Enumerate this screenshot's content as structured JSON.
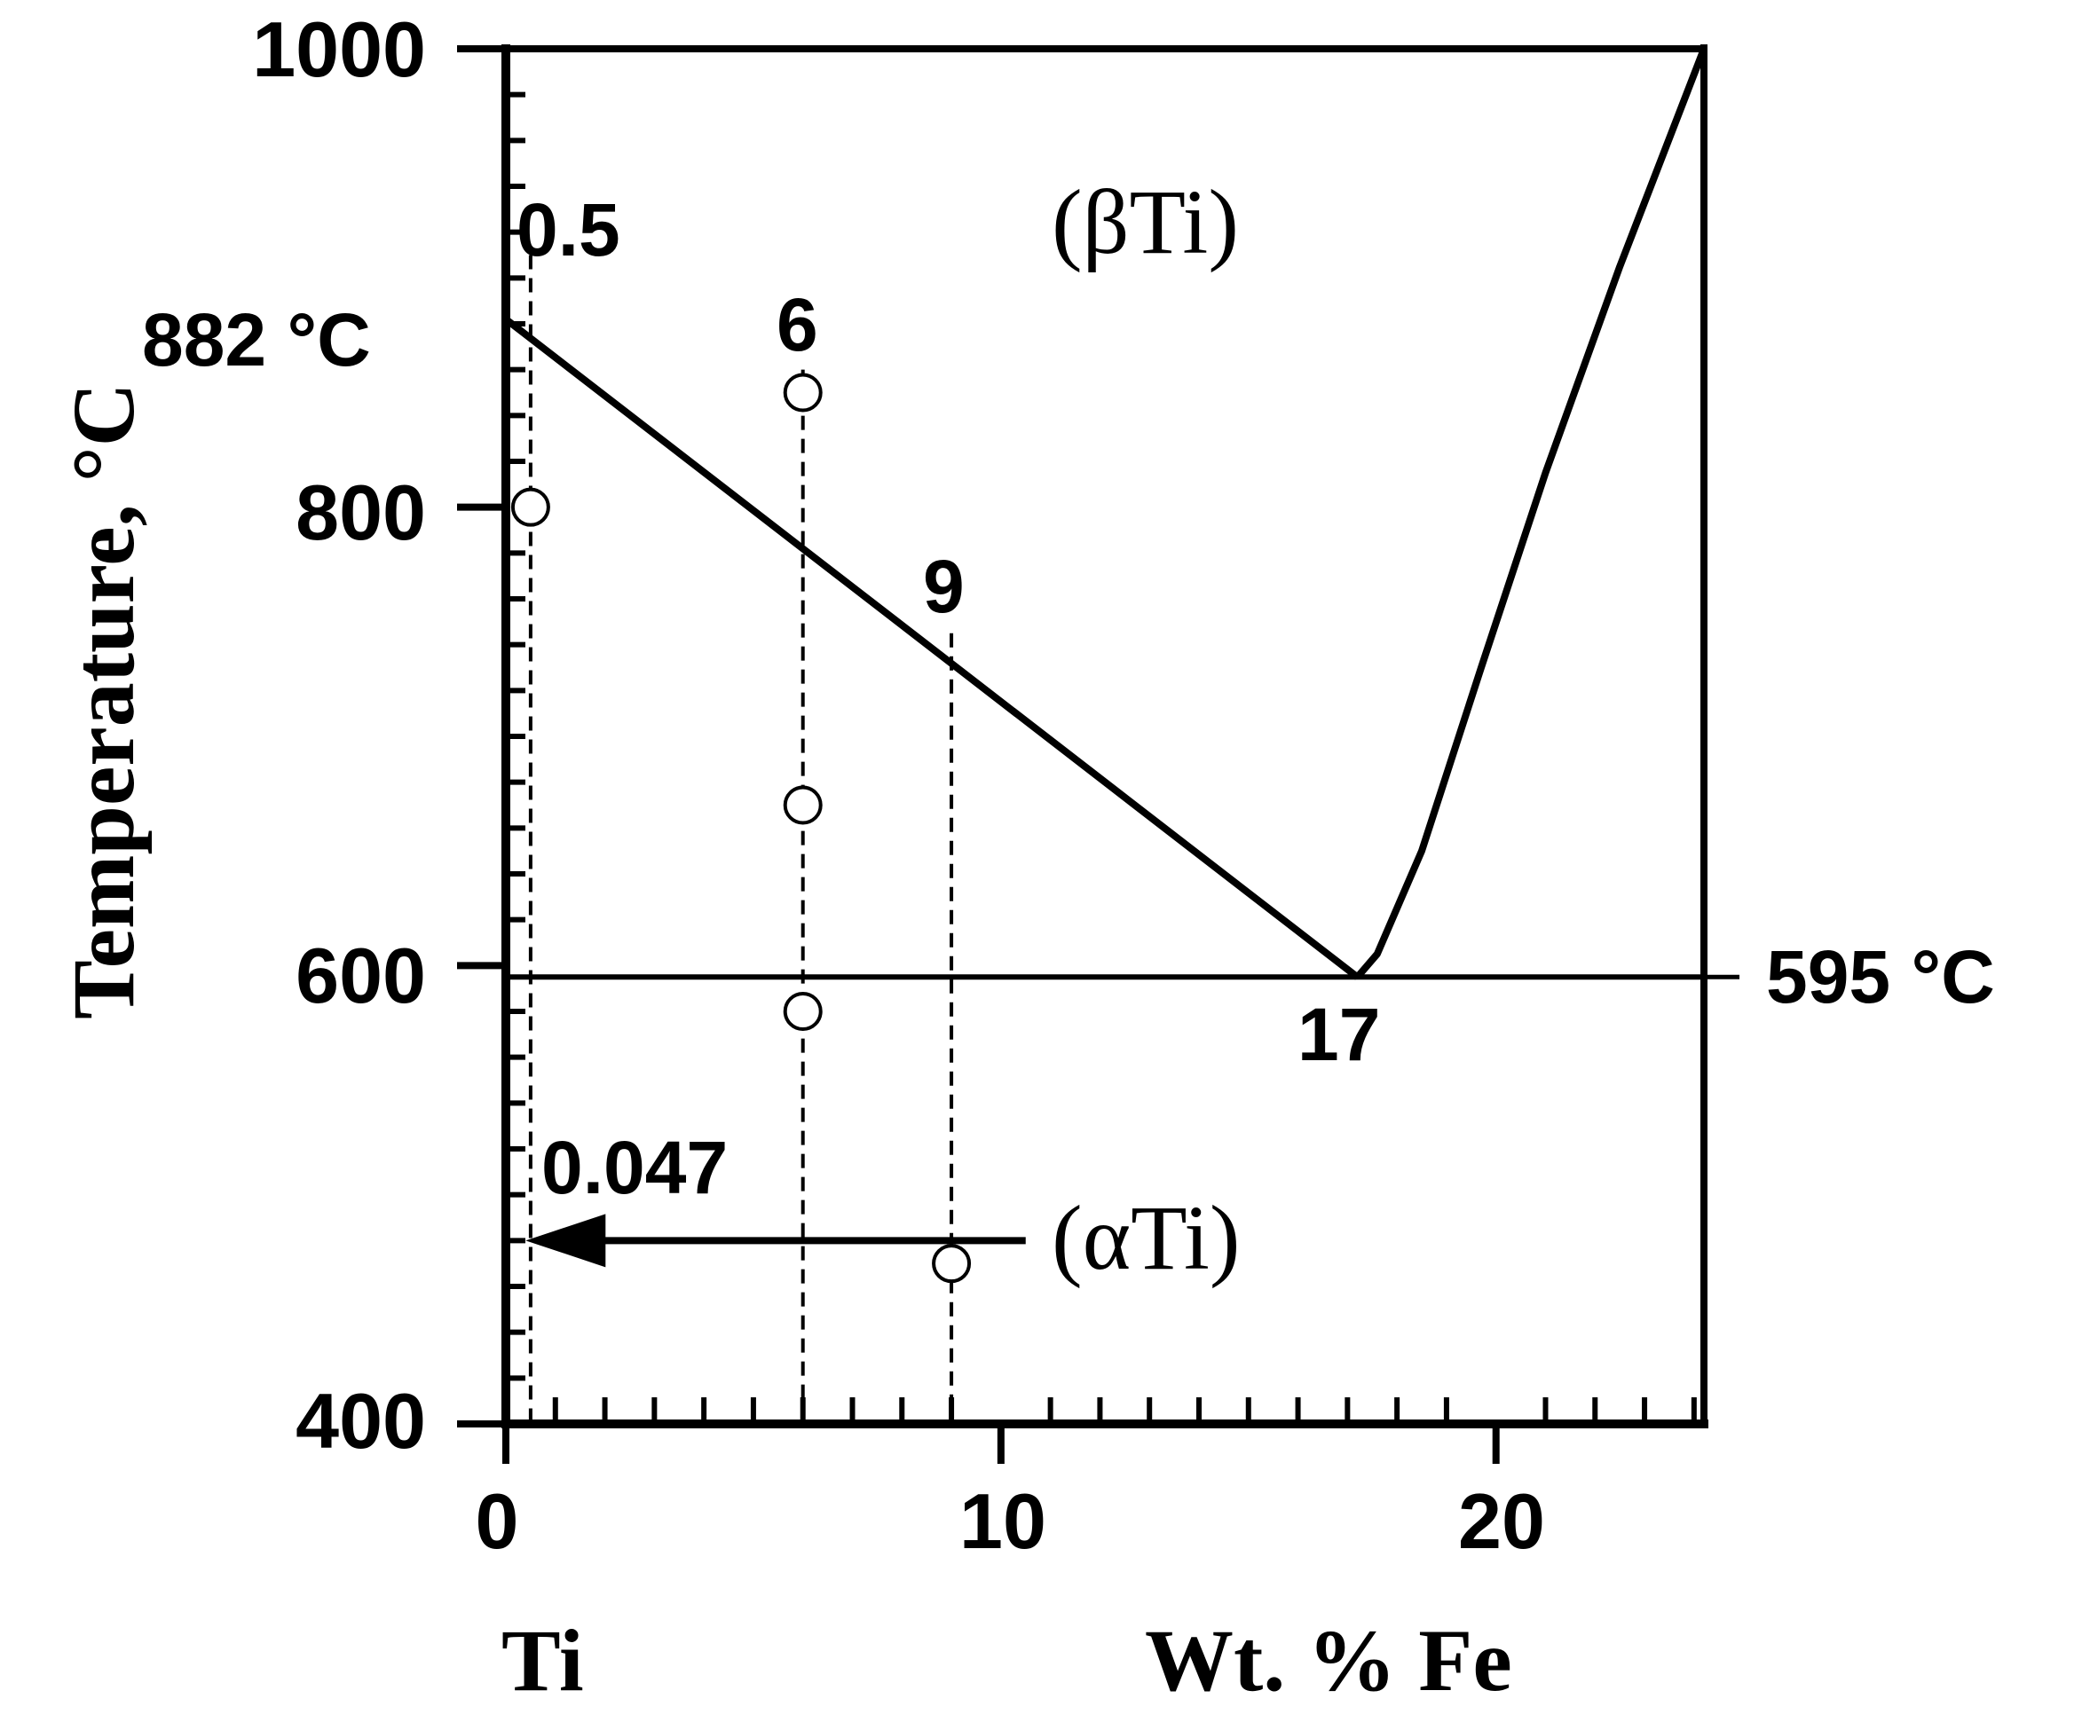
{
  "chart_data": {
    "type": "line",
    "title": "",
    "xlabel": "Wt. % Fe",
    "ylabel": "Temperature, °C",
    "x_origin_label": "Ti",
    "xlim": [
      0,
      24.2
    ],
    "ylim": [
      400,
      1000
    ],
    "x_ticks": [
      0,
      10,
      20
    ],
    "y_ticks": [
      400,
      600,
      800,
      1000
    ],
    "grid": false,
    "series": [
      {
        "role": "beta-transus",
        "style": "solid",
        "points": [
          [
            0,
            882
          ],
          [
            17.2,
            595
          ]
        ]
      },
      {
        "role": "beta-solvus",
        "style": "solid",
        "points": [
          [
            17.2,
            595
          ],
          [
            17.6,
            605
          ],
          [
            18.5,
            650
          ],
          [
            19.7,
            730
          ],
          [
            21,
            815
          ],
          [
            22.5,
            905
          ],
          [
            24.2,
            1000
          ]
        ]
      },
      {
        "role": "eutectoid-isotherm",
        "style": "solid",
        "points": [
          [
            0,
            595
          ],
          [
            24.2,
            595
          ]
        ]
      },
      {
        "role": "top-border",
        "style": "solid",
        "points": [
          [
            0,
            1000
          ],
          [
            24.2,
            1000
          ]
        ]
      }
    ],
    "composition_lines": [
      {
        "x": 0.5,
        "label": "0.5",
        "y_top": 910
      },
      {
        "x": 6,
        "label": "6",
        "y_top": 860
      },
      {
        "x": 9,
        "label": "9",
        "y_top": 745
      }
    ],
    "points": [
      {
        "x": 0.5,
        "y": 800
      },
      {
        "x": 6,
        "y": 850
      },
      {
        "x": 6,
        "y": 670
      },
      {
        "x": 6,
        "y": 580
      },
      {
        "x": 9,
        "y": 470
      }
    ],
    "annotations": {
      "transus_temp": "882 °C",
      "eutectoid_temp": "595 °C",
      "eutectoid_comp": "17",
      "alpha_solubility": "0.047",
      "beta_phase": "(βTi)",
      "alpha_phase": "(αTi)"
    },
    "arrow": {
      "from": [
        10.5,
        480
      ],
      "to": [
        0.4,
        480
      ]
    }
  }
}
